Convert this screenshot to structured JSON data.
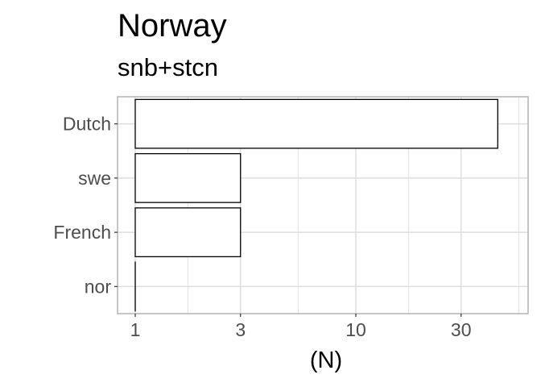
{
  "chart_data": {
    "type": "bar",
    "orientation": "horizontal",
    "title": "Norway",
    "subtitle": "snb+stcn",
    "xlabel": "(N)",
    "ylabel": "",
    "x_scale": "log10",
    "xlim": [
      0.85,
      50
    ],
    "x_ticks": [
      1,
      3,
      10,
      30
    ],
    "categories": [
      "Dutch",
      "swe",
      "French",
      "nor"
    ],
    "values": [
      44,
      3,
      3,
      1
    ],
    "bar_fill": "#ffffff",
    "bar_stroke": "#000000",
    "grid": true,
    "grid_color": "#dedede",
    "panel_border_color": "#b3b3b3",
    "legend": "none"
  }
}
